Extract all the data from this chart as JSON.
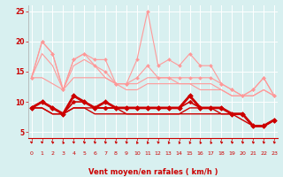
{
  "xlabel": "Vent moyen/en rafales ( km/h )",
  "x": [
    0,
    1,
    2,
    3,
    4,
    5,
    6,
    7,
    8,
    9,
    10,
    11,
    12,
    13,
    14,
    15,
    16,
    17,
    18,
    19,
    20,
    21,
    22,
    23
  ],
  "series": [
    {
      "color": "#ff9999",
      "linewidth": 0.8,
      "marker": "D",
      "markersize": 2.0,
      "values": [
        14,
        20,
        18,
        12,
        17,
        18,
        17,
        17,
        13,
        13,
        17,
        25,
        16,
        17,
        16,
        18,
        16,
        16,
        13,
        12,
        11,
        12,
        14,
        11
      ]
    },
    {
      "color": "#ff9999",
      "linewidth": 0.8,
      "marker": "D",
      "markersize": 2.0,
      "values": [
        14,
        20,
        18,
        12,
        17,
        18,
        16,
        15,
        13,
        13,
        14,
        16,
        14,
        14,
        14,
        14,
        14,
        14,
        13,
        12,
        11,
        12,
        14,
        11
      ]
    },
    {
      "color": "#ff9999",
      "linewidth": 0.8,
      "marker": null,
      "markersize": 0,
      "values": [
        14,
        18,
        16,
        12,
        16,
        17,
        16,
        14,
        13,
        13,
        13,
        14,
        14,
        14,
        13,
        13,
        13,
        13,
        12,
        11,
        11,
        11,
        12,
        11
      ]
    },
    {
      "color": "#ff9999",
      "linewidth": 0.8,
      "marker": null,
      "markersize": 0,
      "values": [
        14,
        14,
        13,
        12,
        14,
        14,
        14,
        14,
        13,
        12,
        12,
        13,
        13,
        13,
        13,
        13,
        12,
        12,
        12,
        11,
        11,
        11,
        12,
        11
      ]
    },
    {
      "color": "#cc0000",
      "linewidth": 1.2,
      "marker": "D",
      "markersize": 2.5,
      "values": [
        9,
        10,
        9,
        8,
        11,
        10,
        9,
        9,
        9,
        9,
        9,
        9,
        9,
        9,
        9,
        11,
        9,
        9,
        9,
        8,
        8,
        6,
        6,
        7
      ]
    },
    {
      "color": "#cc0000",
      "linewidth": 1.2,
      "marker": "D",
      "markersize": 2.5,
      "values": [
        9,
        10,
        9,
        8,
        10,
        10,
        9,
        9,
        9,
        9,
        9,
        9,
        9,
        9,
        9,
        10,
        9,
        9,
        9,
        8,
        8,
        6,
        6,
        7
      ]
    },
    {
      "color": "#cc0000",
      "linewidth": 1.0,
      "marker": null,
      "markersize": 0,
      "values": [
        9,
        9,
        8,
        8,
        9,
        9,
        9,
        9,
        9,
        8,
        8,
        8,
        8,
        8,
        8,
        9,
        9,
        9,
        8,
        8,
        8,
        6,
        6,
        7
      ]
    },
    {
      "color": "#cc0000",
      "linewidth": 1.0,
      "marker": null,
      "markersize": 0,
      "values": [
        9,
        9,
        8,
        8,
        9,
        9,
        8,
        8,
        8,
        8,
        8,
        8,
        8,
        8,
        8,
        8,
        8,
        8,
        8,
        8,
        7,
        6,
        6,
        7
      ]
    },
    {
      "color": "#cc0000",
      "linewidth": 2.0,
      "marker": "D",
      "markersize": 3.0,
      "values": [
        9,
        10,
        9,
        8,
        11,
        10,
        9,
        10,
        9,
        9,
        9,
        9,
        9,
        9,
        9,
        11,
        9,
        9,
        9,
        8,
        8,
        6,
        6,
        7
      ]
    }
  ],
  "ylim": [
    4,
    26
  ],
  "yticks": [
    5,
    10,
    15,
    20,
    25
  ],
  "xlim": [
    -0.3,
    23.3
  ],
  "bg_color": "#d8f0f0",
  "grid_color": "#ffffff",
  "tick_color": "#cc0000",
  "arrow_color": "#cc0000",
  "xlabel_color": "#cc0000",
  "arrow_angles": [
    225,
    225,
    210,
    195,
    225,
    210,
    210,
    210,
    210,
    210,
    195,
    195,
    210,
    195,
    195,
    195,
    195,
    195,
    210,
    210,
    210,
    210,
    210,
    210
  ]
}
